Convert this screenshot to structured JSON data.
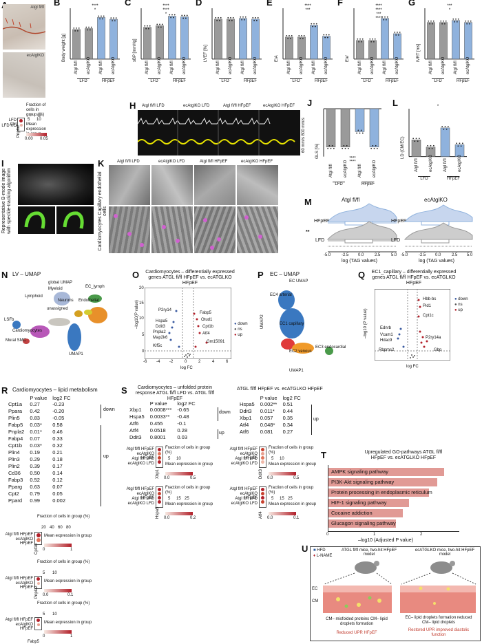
{
  "panels": {
    "A": {
      "letter": "A",
      "top_label": "Atgl fl/fl",
      "bottom_label": "ecAtglKO",
      "legend_frac": "Fraction of cells in group (%)",
      "legend_frac_ticks": [
        "5",
        "10"
      ],
      "legend_expr": "Mean expression in group",
      "legend_expr_ticks": [
        "0.00",
        "0.05"
      ],
      "row1": "LFD Ctrl",
      "row2": "LFD KO",
      "gene": "Pnpla2"
    },
    "B": {
      "letter": "B",
      "ylabel": "Body weight [g]"
    },
    "C": {
      "letter": "C",
      "ylabel": "sBP [mmHg]"
    },
    "D": {
      "letter": "D",
      "ylabel": "LVEF [%]"
    },
    "E": {
      "letter": "E",
      "ylabel": "E/A"
    },
    "F": {
      "letter": "F",
      "ylabel": "E/e'"
    },
    "G": {
      "letter": "G",
      "ylabel": "IVRT [ms]"
    },
    "H": {
      "letter": "H",
      "labels": [
        "Atgl fl/fl LFD",
        "ecAtglKO LFD",
        "Atgl fl/fl HFpEF",
        "ecAtglKO HFpEF"
      ],
      "scale": "60 mm/s 800 mm/s"
    },
    "I": {
      "letter": "I",
      "side": "Representative B-mode image with speckle-tracking algorithm"
    },
    "J": {
      "letter": "J",
      "ylabel": "GLS [%]"
    },
    "K": {
      "letter": "K",
      "labels": [
        "Atgl fl/fl LFD",
        "ecAtglKO LFD",
        "Atgl fl/fl HFpEF",
        "ecAtglKO HFpEF"
      ],
      "side": "Cardiomyocytes Capillary endothelial cells"
    },
    "L": {
      "letter": "L",
      "ylabel": "LD (CM/EC)"
    },
    "M": {
      "letter": "M",
      "left_title": "Atgl fl/fl",
      "right_title": "ecAtglKO",
      "row1": "HFpEF",
      "row2": "LFD",
      "xlabel": "log (TAG values)",
      "ticks": [
        "-5.0",
        "-2.5",
        "0.0",
        "2.5",
        "5.0"
      ],
      "sig": "**"
    },
    "N": {
      "letter": "N",
      "title": "LV – UMAP",
      "sub": "global UMAP",
      "clusters": [
        "Myeloid",
        "EC_lymph",
        "Lymphoid",
        "Neurons",
        "Endothelial",
        "unassigned",
        "Cardiomyocytes",
        "LSFb",
        "Mural SMC"
      ],
      "axis": "UMAP1"
    },
    "O": {
      "letter": "O",
      "title": "Cardiomyocytes – differentially expressed genes ATGL fl/fl HFpEF vs. ecATGLKO HFpEF",
      "ylabel": "–log10(P value)",
      "xlabel": "log FC",
      "genes": [
        "P2ry14",
        "Hspa5",
        "Ddit3",
        "Pnpla2",
        "Map2k6",
        "Klf5c",
        "Fabp5",
        "Otud1",
        "Cpt1b",
        "Atf4",
        "Gm15091"
      ],
      "legend": [
        "down",
        "ns",
        "up"
      ],
      "xticks": [
        "-6",
        "-4",
        "-2",
        "0",
        "2",
        "4",
        "6"
      ],
      "yticks": [
        "20",
        "15",
        "10",
        "5",
        "0"
      ]
    },
    "P": {
      "letter": "P",
      "title": "EC – UMAP",
      "sub": "EC UMAP",
      "clusters": [
        "EC4 arterial",
        "EC1 capillary",
        "EC2 venous",
        "EC3 endocardial"
      ],
      "xaxis": "UMAP1",
      "yaxis": "UMAP2"
    },
    "Q": {
      "letter": "Q",
      "title": "EC1_capillary – differentially expressed genes ATGL fl/fl HFpEF vs. ecATGLKO HFpEF",
      "ylabel": "–log10 (P value)",
      "xlabel": "log FC",
      "genes": [
        "Hbb-bs",
        "Pid1",
        "Cpt1c",
        "Ednrb",
        "Vcam1",
        "Hdac9",
        "Rbpms2",
        "P2ry14a",
        "Gbp"
      ],
      "legend": [
        "down",
        "ns",
        "up"
      ]
    },
    "R": {
      "letter": "R",
      "title": "Cardiomyocytes – lipid metabolism",
      "headers": [
        "P value",
        "log2 FC"
      ],
      "rows": [
        [
          "Cpt1a",
          "0.27",
          "-0.23"
        ],
        [
          "Ppara",
          "0.42",
          "-0.20"
        ],
        [
          "Plin5",
          "0.83",
          "-0.05"
        ],
        [
          "Fabp5",
          "0.03*",
          "0.58"
        ],
        [
          "Pnpla2",
          "0.01*",
          "0.46"
        ],
        [
          "Fabp4",
          "0.07",
          "0.33"
        ],
        [
          "Cpt1b",
          "0.03*",
          "0.32"
        ],
        [
          "Plin4",
          "0.19",
          "0.21"
        ],
        [
          "Plin3",
          "0.29",
          "0.18"
        ],
        [
          "Plin2",
          "0.39",
          "0.17"
        ],
        [
          "Cd36",
          "0.50",
          "0.14"
        ],
        [
          "Fabp3",
          "0.52",
          "0.12"
        ],
        [
          "Pparg",
          "0.63",
          "0.07"
        ],
        [
          "Cpt2",
          "0.79",
          "0.05"
        ],
        [
          "Ppard",
          "0.99",
          "0.002"
        ]
      ],
      "down": "down",
      "up": "up",
      "dot1_rows": [
        "Atgl fl/fl HFpEF",
        "ecAtglKO HFpEF"
      ],
      "dot1_gene": "Cpt1b",
      "dot1_frac_ticks": [
        "20",
        "40",
        "60",
        "80"
      ],
      "dot1_expr_ticks": [
        "0",
        "1"
      ],
      "dot2_gene": "Pnpla2",
      "dot2_frac_ticks": [
        "5",
        "10"
      ],
      "dot2_expr_ticks": [
        "0.0",
        "0.1"
      ],
      "dot3_gene": "Fabp5",
      "dot3_frac_ticks": [
        "5",
        "10"
      ],
      "dot3_expr_ticks": [
        "0",
        "1"
      ],
      "frac": "Fraction of cells in group (%)",
      "expr": "Mean expression in group"
    },
    "S": {
      "letter": "S",
      "title": "Cardiomyocytes – unfolded protein response ATGL fl/fl LFD vs. ATGL fl/fl HFpEF",
      "headers": [
        "P value",
        "log2 FC"
      ],
      "rows": [
        [
          "Xbp1",
          "0.0008***",
          "-0.65"
        ],
        [
          "Hspa5",
          "0.0033**",
          "-0.48"
        ],
        [
          "Atf6",
          "0.455",
          "-0.1"
        ],
        [
          "Atf4",
          "0.0518",
          "0.28"
        ],
        [
          "Ddit3",
          "0.8001",
          "0.03"
        ]
      ],
      "title2": "ATGL fl/fl HFpEF vs. ecATGLKO HFpEF",
      "rows2": [
        [
          "Hspa5",
          "0.002**",
          "0.51"
        ],
        [
          "Ddit3",
          "0.011*",
          "0.44"
        ],
        [
          "Xbp1",
          "0.057",
          "0.35"
        ],
        [
          "Atf4",
          "0.048*",
          "0.34"
        ],
        [
          "Atf6",
          "0.081",
          "0.27"
        ]
      ],
      "down": "down",
      "up": "up",
      "dot_rows": [
        "Atgl fl/fl HFpEF",
        "ecAtglKO HFpEF",
        "Atgl fl/fl LFD",
        "ecAtglKO LFD"
      ],
      "genes_left": [
        "Xbp1",
        "Hspa5"
      ],
      "genes_right": [
        "Ddit3",
        "Atf4"
      ],
      "frac": "Fraction of cells in group (%)",
      "expr": "Mean expression in group",
      "frac_ticks_a": [
        "5",
        "10"
      ],
      "frac_ticks_b": [
        "5",
        "15",
        "25"
      ],
      "expr_ticks_a": [
        "0.0",
        "0.5"
      ],
      "expr_ticks_b": [
        "0.0",
        "0.2"
      ],
      "expr_ticks_c": [
        "0.0",
        "0.1"
      ]
    },
    "T": {
      "letter": "T",
      "title": "Upregulated GO-pathways ATGL fl/fl HFpEF vs. ecATGLKO HFpEF",
      "xlabel": "–log10 (Adjusted P value)",
      "xticks": [
        "0",
        "1",
        "2"
      ],
      "pathways": [
        [
          "AMPK signaling pathway",
          2.65
        ],
        [
          "PI3K-Akt signaling pathway",
          2.5
        ],
        [
          "Protein processing in endoplasmic reticulum",
          2.3
        ],
        [
          "HIF-1 signaling pathway",
          1.85
        ],
        [
          "Cocaine addiction",
          1.7
        ],
        [
          "Glucagon signaling pathway",
          1.55
        ]
      ]
    },
    "U": {
      "letter": "U",
      "legend_hfd": "HFD",
      "legend_lname": "L-NAME",
      "left_title": "ATGL fl/fl mice, two-hit HFpEF model",
      "right_title": "ecATGLKO mice, two-hit HFpEF model",
      "ec": "EC",
      "cm": "CM",
      "left_text": "CM– misfolded proteins CM– lipid droplets formation",
      "left_result": "Reduced UPR HFpEF",
      "right_text": "EC– lipid droplets formation reduced CM– lipid droplets",
      "right_result": "Restored UPR improved diastolic function"
    }
  },
  "groups": {
    "g1": "Atgl fl/fl",
    "g2": "ecAtglKO",
    "diet1": "LFD",
    "diet2": "HFpEF"
  },
  "colors": {
    "gray": "#9a9a9a",
    "blue": "#8fb2dd",
    "red": "#b2202a",
    "salmon": "#e19a95",
    "yellow": "#e8e400",
    "orange": "#f09a2a"
  },
  "chart_data": [
    {
      "type": "bar",
      "title": "",
      "ylabel": "Body weight [g]",
      "categories": [
        "Atgl fl/fl LFD",
        "ecAtglKO LFD",
        "Atgl fl/fl HFpEF",
        "ecAtglKO HFpEF"
      ],
      "values": [
        32,
        33,
        45,
        43
      ],
      "ylim": [
        0,
        55
      ],
      "sig": [
        "****",
        "*"
      ]
    },
    {
      "type": "bar",
      "title": "",
      "ylabel": "sBP [mmHg]",
      "categories": [
        "Atgl fl/fl LFD",
        "ecAtglKO LFD",
        "Atgl fl/fl HFpEF",
        "ecAtglKO HFpEF"
      ],
      "values": [
        100,
        105,
        135,
        133
      ],
      "ylim": [
        0,
        160
      ],
      "sig": [
        "****",
        "****",
        "*"
      ]
    },
    {
      "type": "bar",
      "title": "",
      "ylabel": "LVEF [%]",
      "categories": [
        "Atgl fl/fl LFD",
        "ecAtglKO LFD",
        "Atgl fl/fl HFpEF",
        "ecAtglKO HFpEF"
      ],
      "values": [
        55,
        55,
        56,
        55
      ],
      "ylim": [
        0,
        70
      ],
      "sig": []
    },
    {
      "type": "bar",
      "title": "",
      "ylabel": "E/A",
      "categories": [
        "Atgl fl/fl LFD",
        "ecAtglKO LFD",
        "Atgl fl/fl HFpEF",
        "ecAtglKO HFpEF"
      ],
      "values": [
        1.3,
        1.3,
        2.0,
        1.35
      ],
      "ylim": [
        0,
        3
      ],
      "sig": [
        "****",
        "***"
      ]
    },
    {
      "type": "bar",
      "title": "",
      "ylabel": "E/e'",
      "categories": [
        "Atgl fl/fl LFD",
        "ecAtglKO LFD",
        "Atgl fl/fl HFpEF",
        "ecAtglKO HFpEF"
      ],
      "values": [
        22,
        22,
        48,
        30
      ],
      "ylim": [
        0,
        60
      ],
      "sig": [
        "****",
        "****",
        "***",
        "****"
      ]
    },
    {
      "type": "bar",
      "title": "",
      "ylabel": "IVRT [ms]",
      "categories": [
        "Atgl fl/fl LFD",
        "ecAtglKO LFD",
        "Atgl fl/fl HFpEF",
        "ecAtglKO HFpEF"
      ],
      "values": [
        18,
        18,
        19,
        18
      ],
      "ylim": [
        0,
        25
      ],
      "sig": [
        "***",
        "*"
      ]
    },
    {
      "type": "bar",
      "title": "",
      "ylabel": "GLS [%]",
      "categories": [
        "Atgl fl/fl LFD",
        "ecAtglKO LFD",
        "Atgl fl/fl HFpEF",
        "ecAtglKO HFpEF"
      ],
      "values": [
        -20,
        -20,
        -12,
        -20
      ],
      "ylim": [
        -25,
        0
      ],
      "sig": [
        "****",
        "****"
      ]
    },
    {
      "type": "bar",
      "title": "",
      "ylabel": "LD (CM/EC)",
      "categories": [
        "Atgl fl/fl LFD",
        "ecAtglKO LFD",
        "Atgl fl/fl HFpEF",
        "ecAtglKO HFpEF"
      ],
      "values": [
        7,
        4,
        12,
        5
      ],
      "ylim": [
        0,
        20
      ],
      "sig": [
        "*"
      ]
    }
  ]
}
